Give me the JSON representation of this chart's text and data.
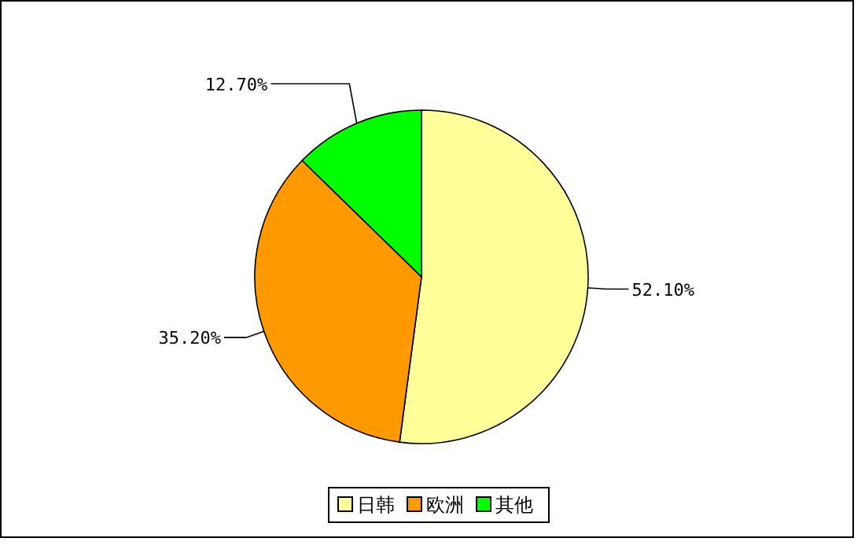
{
  "chart_data": {
    "type": "pie",
    "categories": [
      "日韩",
      "欧洲",
      "其他"
    ],
    "values": [
      52.1,
      35.2,
      12.7
    ],
    "colors": [
      "#ffff99",
      "#ff9900",
      "#00ff00"
    ],
    "value_labels": [
      "52.10%",
      "35.20%",
      "12.70%"
    ],
    "legend": "bottom"
  }
}
